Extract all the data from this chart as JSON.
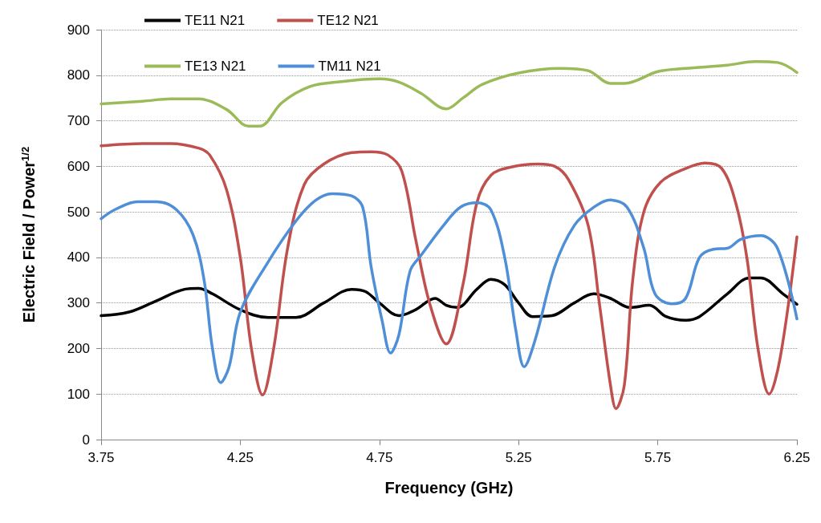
{
  "chart_data": {
    "type": "line",
    "xlabel": "Frequency (GHz)",
    "ylabel": "Electric Field / Power$^{1/2}$",
    "xlim": [
      3.75,
      6.25
    ],
    "xticks": [
      3.75,
      4.25,
      4.75,
      5.25,
      5.75,
      6.25
    ],
    "ylim": [
      0,
      900
    ],
    "yticks": [
      0,
      100,
      200,
      300,
      400,
      500,
      600,
      700,
      800,
      900
    ],
    "grid": "y",
    "legend": "top left",
    "marker": "none",
    "line_style": "solid",
    "series": [
      {
        "name": "TE11 N21",
        "color": "#000000",
        "x": [
          3.75,
          3.85,
          3.95,
          4.05,
          4.1,
          4.15,
          4.25,
          4.35,
          4.45,
          4.55,
          4.65,
          4.7,
          4.75,
          4.82,
          4.88,
          4.95,
          4.99,
          5.03,
          5.1,
          5.15,
          5.2,
          5.25,
          5.3,
          5.37,
          5.45,
          5.52,
          5.58,
          5.65,
          5.72,
          5.78,
          5.85,
          5.9,
          6.0,
          6.08,
          6.12,
          6.2,
          6.25
        ],
        "values": [
          272,
          280,
          305,
          330,
          332,
          320,
          285,
          268,
          268,
          300,
          330,
          325,
          300,
          272,
          285,
          310,
          295,
          290,
          330,
          352,
          340,
          300,
          270,
          272,
          300,
          320,
          310,
          290,
          295,
          270,
          262,
          270,
          320,
          355,
          355,
          320,
          297
        ]
      },
      {
        "name": "TE12 N21",
        "color": "#c0504d",
        "x": [
          3.75,
          3.9,
          4.0,
          4.1,
          4.14,
          4.2,
          4.25,
          4.29,
          4.33,
          4.37,
          4.42,
          4.48,
          4.55,
          4.65,
          4.72,
          4.78,
          4.83,
          4.88,
          4.93,
          4.99,
          5.05,
          5.1,
          5.15,
          5.22,
          5.32,
          5.38,
          5.43,
          5.5,
          5.54,
          5.58,
          5.6,
          5.63,
          5.66,
          5.7,
          5.76,
          5.85,
          5.92,
          5.98,
          6.03,
          6.07,
          6.11,
          6.15,
          6.19,
          6.25
        ],
        "values": [
          645,
          650,
          650,
          640,
          625,
          550,
          400,
          200,
          98,
          200,
          420,
          560,
          605,
          630,
          632,
          625,
          590,
          440,
          300,
          210,
          340,
          520,
          580,
          598,
          605,
          600,
          570,
          470,
          300,
          120,
          68,
          120,
          350,
          500,
          565,
          595,
          607,
          595,
          520,
          400,
          200,
          100,
          180,
          445
        ]
      },
      {
        "name": "TE13 N21",
        "color": "#9bbb59",
        "x": [
          3.75,
          3.9,
          4.0,
          4.1,
          4.2,
          4.28,
          4.32,
          4.4,
          4.5,
          4.6,
          4.75,
          4.82,
          4.9,
          4.99,
          5.05,
          5.12,
          5.25,
          5.4,
          5.5,
          5.58,
          5.63,
          5.75,
          5.85,
          6.0,
          6.1,
          6.18,
          6.25
        ],
        "values": [
          737,
          743,
          748,
          748,
          725,
          688,
          688,
          740,
          775,
          785,
          792,
          785,
          760,
          726,
          750,
          780,
          805,
          815,
          810,
          782,
          782,
          808,
          815,
          822,
          830,
          828,
          806
        ]
      },
      {
        "name": "TM11 N21",
        "color": "#4f8fd8",
        "x": [
          3.75,
          3.8,
          3.88,
          3.95,
          4.02,
          4.08,
          4.12,
          4.15,
          4.18,
          4.21,
          4.25,
          4.35,
          4.45,
          4.52,
          4.58,
          4.65,
          4.69,
          4.72,
          4.76,
          4.79,
          4.82,
          4.86,
          4.9,
          4.98,
          5.04,
          5.1,
          5.15,
          5.2,
          5.24,
          5.27,
          5.31,
          5.38,
          5.45,
          5.52,
          5.58,
          5.64,
          5.7,
          5.74,
          5.8,
          5.85,
          5.9,
          5.95,
          6.0,
          6.05,
          6.12,
          6.18,
          6.25
        ],
        "values": [
          485,
          505,
          522,
          522,
          505,
          450,
          350,
          200,
          125,
          160,
          280,
          390,
          480,
          525,
          540,
          535,
          510,
          380,
          260,
          190,
          230,
          370,
          405,
          470,
          510,
          520,
          505,
          400,
          240,
          160,
          220,
          380,
          470,
          510,
          526,
          510,
          420,
          320,
          298,
          310,
          400,
          418,
          420,
          440,
          448,
          420,
          265
        ]
      }
    ]
  }
}
